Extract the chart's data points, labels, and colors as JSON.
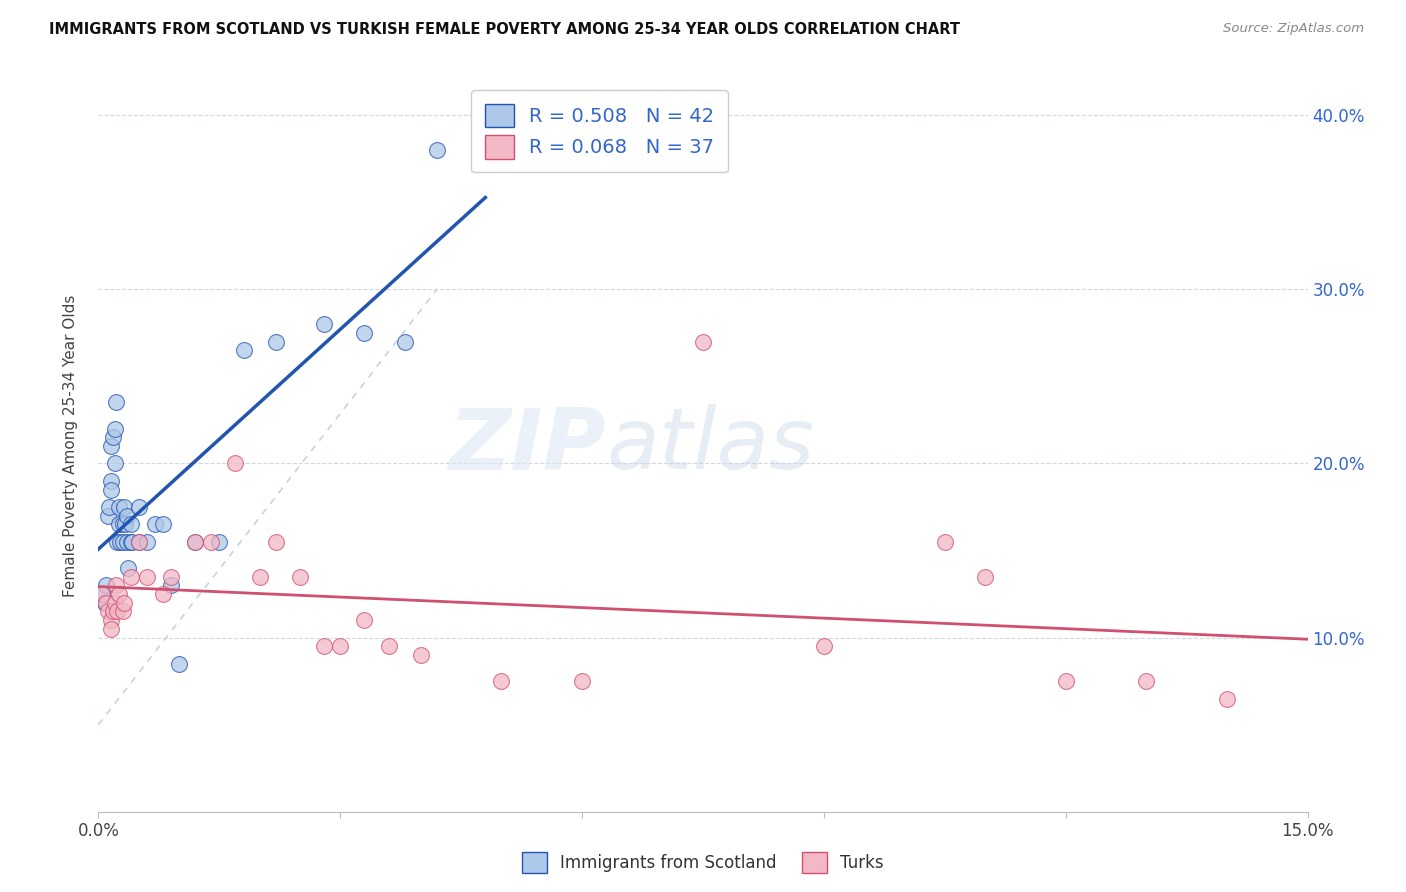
{
  "title": "IMMIGRANTS FROM SCOTLAND VS TURKISH FEMALE POVERTY AMONG 25-34 YEAR OLDS CORRELATION CHART",
  "source": "Source: ZipAtlas.com",
  "ylabel": "Female Poverty Among 25-34 Year Olds",
  "xlim": [
    0.0,
    0.15
  ],
  "ylim": [
    0.0,
    0.42
  ],
  "scotland_R": 0.508,
  "scotland_N": 42,
  "turks_R": 0.068,
  "turks_N": 37,
  "scotland_color": "#adc8e8",
  "turks_color": "#f2b8c6",
  "scotland_line_color": "#2255b0",
  "turks_line_color": "#d05070",
  "diag_line_color": "#b8c8d8",
  "legend_text_color": "#3366cc",
  "watermark_zip": "ZIP",
  "watermark_atlas": "atlas",
  "scotland_x": [
    0.0005,
    0.0008,
    0.001,
    0.0012,
    0.0013,
    0.0015,
    0.0015,
    0.0016,
    0.0018,
    0.002,
    0.002,
    0.0022,
    0.0023,
    0.0025,
    0.0025,
    0.0027,
    0.003,
    0.003,
    0.0032,
    0.0033,
    0.0035,
    0.0035,
    0.0037,
    0.004,
    0.004,
    0.0042,
    0.005,
    0.005,
    0.006,
    0.007,
    0.008,
    0.009,
    0.01,
    0.012,
    0.015,
    0.018,
    0.022,
    0.028,
    0.033,
    0.038,
    0.042,
    0.048
  ],
  "scotland_y": [
    0.125,
    0.12,
    0.13,
    0.17,
    0.175,
    0.19,
    0.185,
    0.21,
    0.215,
    0.2,
    0.22,
    0.235,
    0.155,
    0.165,
    0.175,
    0.155,
    0.155,
    0.165,
    0.175,
    0.165,
    0.17,
    0.155,
    0.14,
    0.155,
    0.165,
    0.155,
    0.175,
    0.155,
    0.155,
    0.165,
    0.165,
    0.13,
    0.085,
    0.155,
    0.155,
    0.265,
    0.27,
    0.28,
    0.275,
    0.27,
    0.38,
    0.38
  ],
  "turks_x": [
    0.0005,
    0.001,
    0.0012,
    0.0015,
    0.0015,
    0.0018,
    0.002,
    0.0022,
    0.0023,
    0.0025,
    0.003,
    0.0032,
    0.004,
    0.005,
    0.006,
    0.008,
    0.009,
    0.012,
    0.014,
    0.017,
    0.02,
    0.022,
    0.025,
    0.028,
    0.03,
    0.033,
    0.036,
    0.04,
    0.05,
    0.06,
    0.075,
    0.09,
    0.105,
    0.11,
    0.12,
    0.13,
    0.14
  ],
  "turks_y": [
    0.125,
    0.12,
    0.115,
    0.11,
    0.105,
    0.115,
    0.12,
    0.13,
    0.115,
    0.125,
    0.115,
    0.12,
    0.135,
    0.155,
    0.135,
    0.125,
    0.135,
    0.155,
    0.155,
    0.2,
    0.135,
    0.155,
    0.135,
    0.095,
    0.095,
    0.11,
    0.095,
    0.09,
    0.075,
    0.075,
    0.27,
    0.095,
    0.155,
    0.135,
    0.075,
    0.075,
    0.065
  ]
}
